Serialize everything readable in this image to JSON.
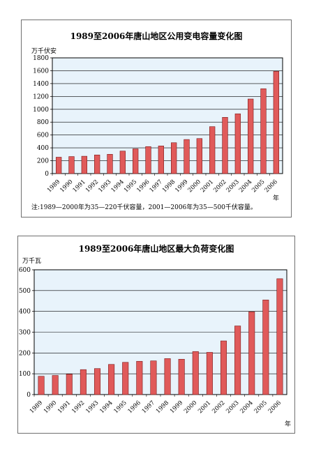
{
  "chart_data": [
    {
      "type": "bar",
      "title": "1989至2006年唐山地区公用变电容量变化图",
      "ylabel": "万千伏安",
      "xlabel": "年",
      "categories": [
        "1989",
        "1990",
        "1991",
        "1992",
        "1993",
        "1994",
        "1995",
        "1996",
        "1997",
        "1998",
        "1999",
        "2000",
        "2001",
        "2002",
        "2003",
        "2004",
        "2005",
        "2006"
      ],
      "values": [
        255,
        265,
        270,
        290,
        300,
        350,
        385,
        420,
        430,
        480,
        530,
        545,
        730,
        875,
        930,
        1160,
        1320,
        1590
      ],
      "ylim": [
        0,
        1800
      ],
      "yticks": [
        0,
        200,
        400,
        600,
        800,
        1000,
        1200,
        1400,
        1600,
        1800
      ],
      "note": "注:1989—2000年为35—220千伏容量，2001—2006年为35—500千伏容量。",
      "plot_background": "#e8f3fb",
      "bar_color": "#e05a5a",
      "bar_stroke": "#7a1a1a"
    },
    {
      "type": "bar",
      "title": "1989至2006年唐山地区最大负荷变化图",
      "ylabel": "万千瓦",
      "xlabel": "年",
      "categories": [
        "1989",
        "1990",
        "1991",
        "1992",
        "1993",
        "1994",
        "1995",
        "1996",
        "1997",
        "1998",
        "1999",
        "2000",
        "2001",
        "2002",
        "2003",
        "2004",
        "2005",
        "2006"
      ],
      "values": [
        88,
        92,
        98,
        120,
        125,
        145,
        155,
        160,
        162,
        173,
        170,
        207,
        203,
        258,
        330,
        398,
        455,
        557
      ],
      "ylim": [
        0,
        600
      ],
      "yticks": [
        0,
        100,
        200,
        300,
        400,
        500,
        600
      ],
      "plot_background": "#e8f3fb",
      "bar_color": "#e05a5a",
      "bar_stroke": "#7a1a1a"
    }
  ]
}
